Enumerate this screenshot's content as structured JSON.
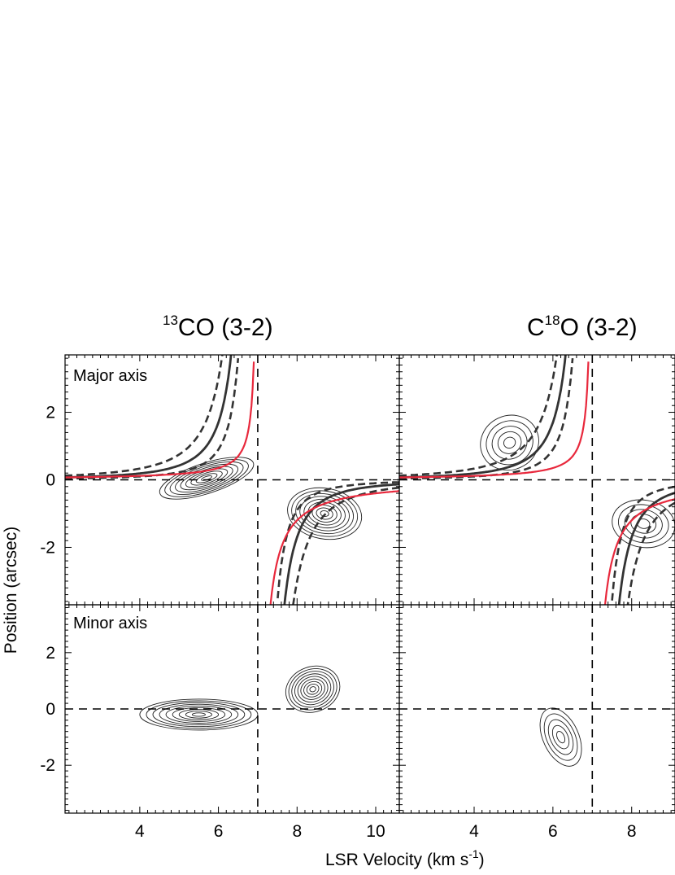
{
  "figure": {
    "panel_titles": [
      {
        "main": "CO (3-2)",
        "sup": "13",
        "sup_position": "before"
      },
      {
        "pre": "C",
        "sup": "18",
        "main": "O (3-2)",
        "sup_position": "middle"
      }
    ],
    "xlabel_main": "LSR Velocity (km s",
    "xlabel_sup": "-1",
    "xlabel_close": ")",
    "ylabel": "Position (arcsec)",
    "row_labels": [
      "Major axis",
      "Minor axis"
    ]
  },
  "chart_data": [
    {
      "type": "contour",
      "panel": "13CO (3-2) Major axis",
      "xlim": [
        2.1,
        10.6
      ],
      "ylim": [
        -3.7,
        3.7
      ],
      "xticks": [
        4,
        6,
        8,
        10
      ],
      "yticks": [
        2,
        0,
        -2
      ],
      "ytick_labels": [
        "2",
        "0",
        "-2"
      ],
      "vsys": 7.0,
      "offset_zero": 0,
      "emission_peaks": [
        {
          "v": 5.7,
          "offset": 0.05
        },
        {
          "v": 8.7,
          "offset": -1.0
        }
      ],
      "model_curves": [
        "keplerian (solid)",
        "keplerian bounds (dashed)",
        "red model"
      ]
    },
    {
      "type": "contour",
      "panel": "C18O (3-2) Major axis",
      "xlim": [
        2.1,
        9.1
      ],
      "ylim": [
        -3.7,
        3.7
      ],
      "xticks": [
        4,
        6,
        8
      ],
      "vsys": 7.0,
      "offset_zero": 0,
      "emission_peaks": [
        {
          "v": 4.9,
          "offset": 1.1
        },
        {
          "v": 8.3,
          "offset": -1.3
        }
      ]
    },
    {
      "type": "contour",
      "panel": "13CO (3-2) Minor axis",
      "xlim": [
        2.1,
        10.6
      ],
      "ylim": [
        -3.7,
        3.7
      ],
      "xticks": [
        4,
        6,
        8,
        10
      ],
      "yticks": [
        2,
        0,
        -2
      ],
      "xtick_labels": [
        "4",
        "6",
        "8",
        "10"
      ],
      "vsys": 7.0,
      "offset_zero": 0,
      "emission_peaks": [
        {
          "v": 5.5,
          "offset": -0.2
        },
        {
          "v": 8.4,
          "offset": 0.7
        }
      ]
    },
    {
      "type": "contour",
      "panel": "C18O (3-2) Minor axis",
      "xlim": [
        2.1,
        9.1
      ],
      "ylim": [
        -3.7,
        3.7
      ],
      "xticks": [
        4,
        6,
        8
      ],
      "xtick_labels": [
        "4",
        "6",
        "8"
      ],
      "vsys": 7.0,
      "offset_zero": 0,
      "emission_peaks": [
        {
          "v": 6.2,
          "offset": -1.0
        }
      ]
    }
  ]
}
